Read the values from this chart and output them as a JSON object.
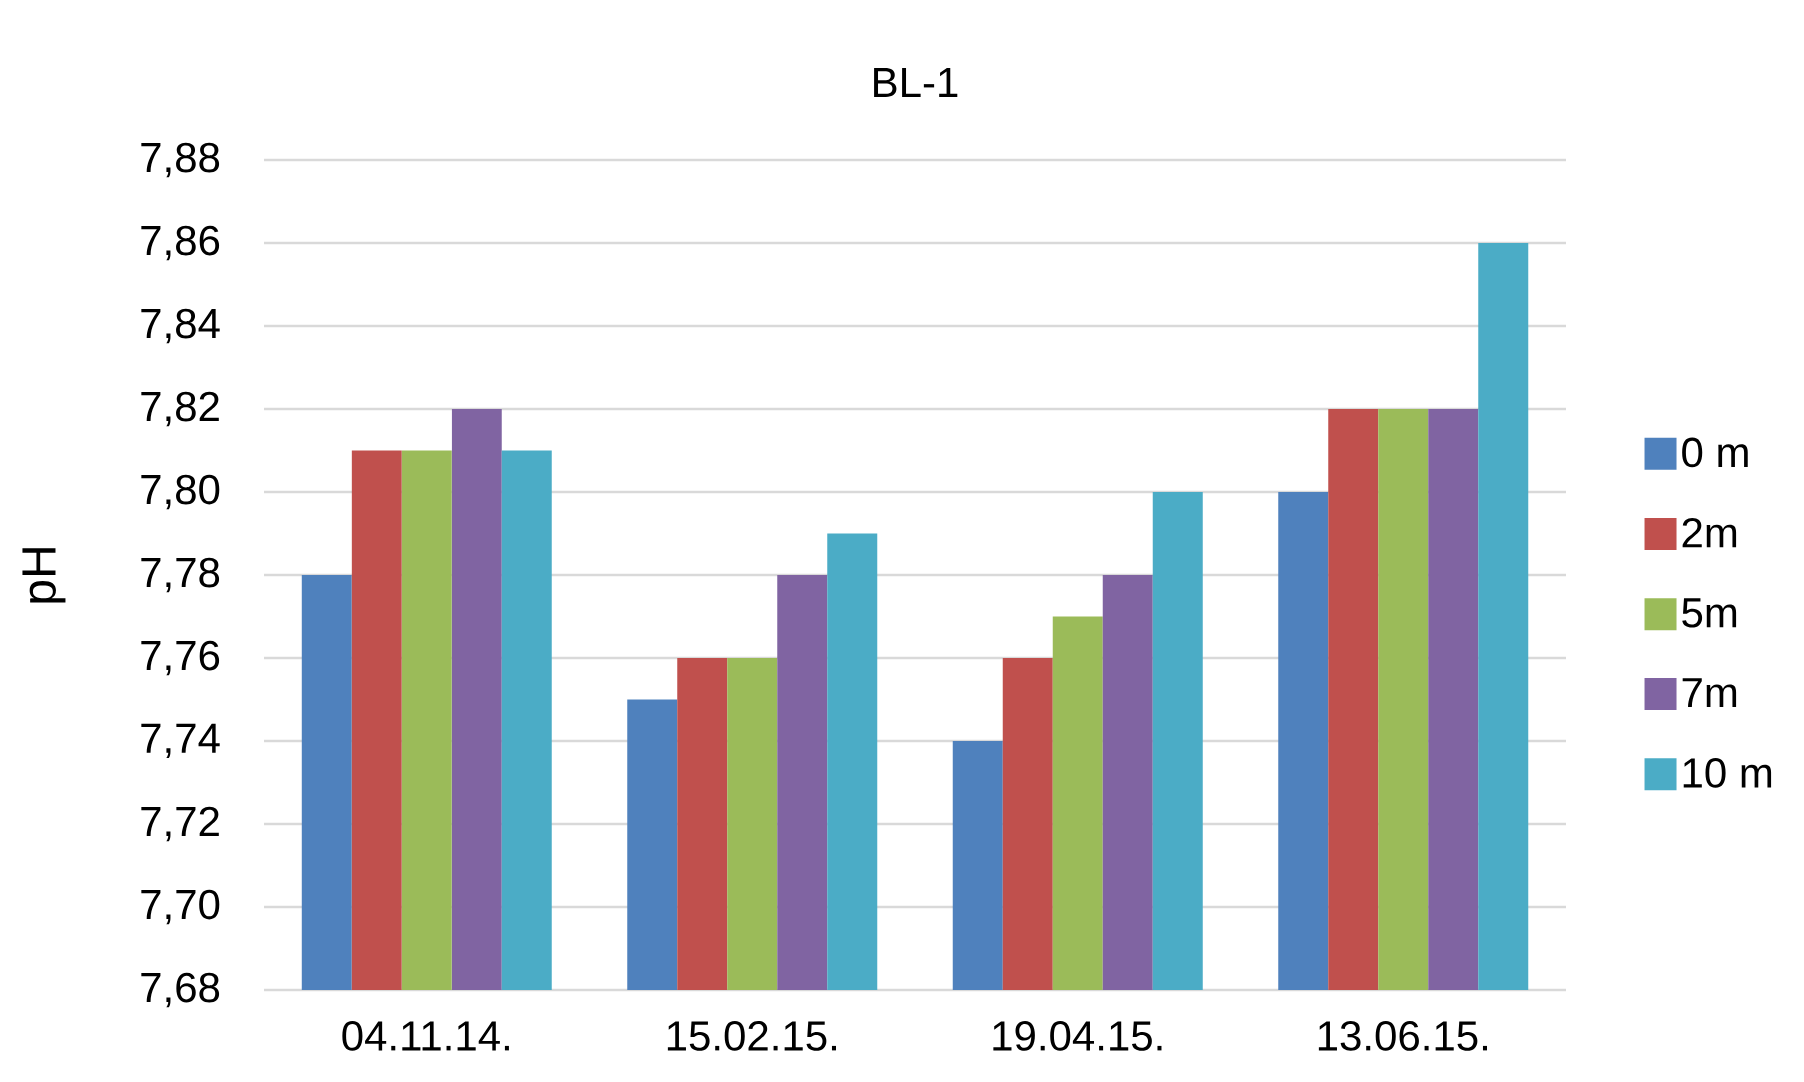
{
  "chart_data": {
    "type": "bar",
    "title": "BL-1",
    "ylabel": "pH",
    "categories": [
      "04.11.14.",
      "15.02.15.",
      "19.04.15.",
      "13.06.15."
    ],
    "series": [
      {
        "name": "0 m",
        "color": "#4f81bd",
        "values": [
          7.78,
          7.75,
          7.74,
          7.8
        ]
      },
      {
        "name": "2m",
        "color": "#c0504d",
        "values": [
          7.81,
          7.76,
          7.76,
          7.82
        ]
      },
      {
        "name": "5m",
        "color": "#9bbb59",
        "values": [
          7.81,
          7.76,
          7.77,
          7.82
        ]
      },
      {
        "name": "7m",
        "color": "#8064a2",
        "values": [
          7.82,
          7.78,
          7.78,
          7.82
        ]
      },
      {
        "name": "10 m",
        "color": "#4bacc6",
        "values": [
          7.81,
          7.79,
          7.8,
          7.86
        ]
      }
    ],
    "ylim": [
      7.68,
      7.88
    ],
    "yticks": [
      {
        "value": 7.68,
        "label": "7,68"
      },
      {
        "value": 7.7,
        "label": "7,70"
      },
      {
        "value": 7.72,
        "label": "7,72"
      },
      {
        "value": 7.74,
        "label": "7,74"
      },
      {
        "value": 7.76,
        "label": "7,76"
      },
      {
        "value": 7.78,
        "label": "7,78"
      },
      {
        "value": 7.8,
        "label": "7,80"
      },
      {
        "value": 7.82,
        "label": "7,82"
      },
      {
        "value": 7.84,
        "label": "7,84"
      },
      {
        "value": 7.86,
        "label": "7,86"
      },
      {
        "value": 7.88,
        "label": "7,88"
      }
    ],
    "grid": "y",
    "legend": "right"
  }
}
